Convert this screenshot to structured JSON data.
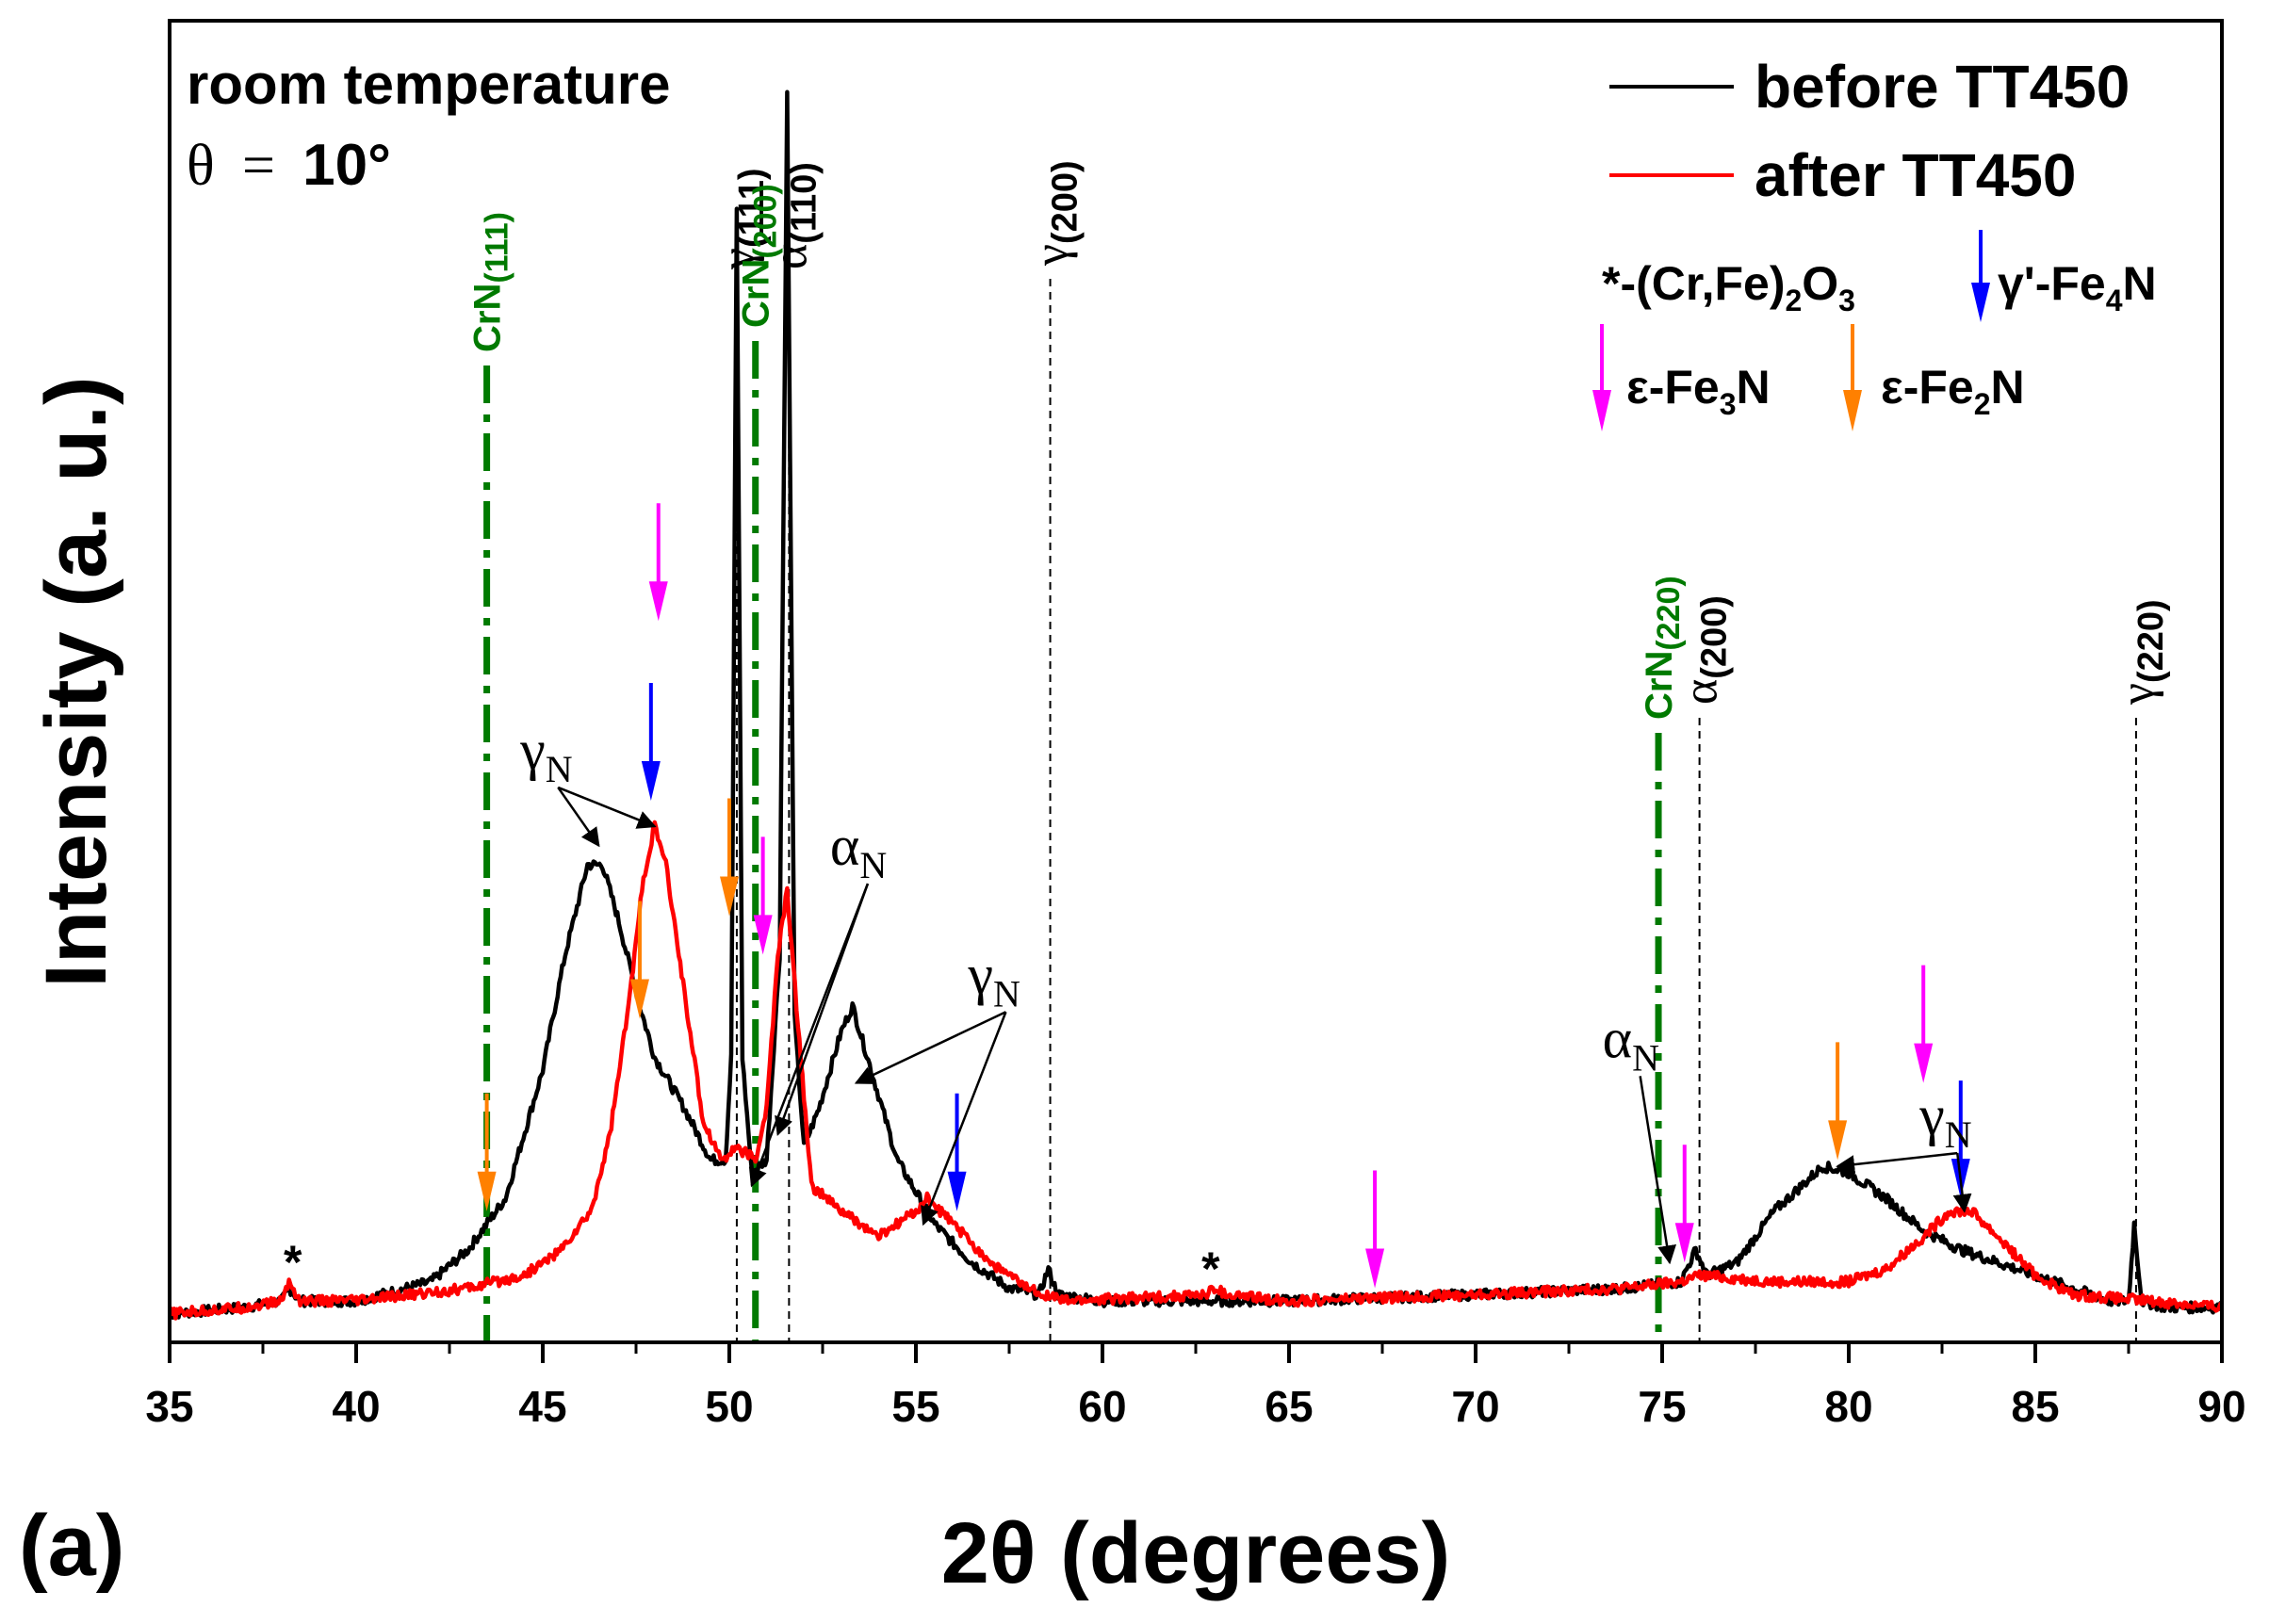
{
  "chart_data": {
    "type": "line",
    "panel_label": "(a)",
    "xlabel": "2θ (degrees)",
    "ylabel": "Intensity (a. u.)",
    "xlim": [
      35,
      90
    ],
    "ylim": [
      0,
      1
    ],
    "ticks": [
      35,
      40,
      45,
      50,
      55,
      60,
      65,
      70,
      75,
      80,
      85,
      90
    ],
    "tick_labels": [
      "35",
      "40",
      "45",
      "50",
      "55",
      "60",
      "65",
      "70",
      "75",
      "80",
      "85",
      "90"
    ],
    "conditions": {
      "line1": "room temperature",
      "theta_symbol": "θ",
      "equals": "=",
      "angle": "10°"
    },
    "legend": {
      "position": "top-right",
      "before": "before TT450",
      "after": "after TT450"
    },
    "phase_legend": {
      "oxide_symbol": "*",
      "oxide_a": "-(Cr,Fe)",
      "oxide_s1": "2",
      "oxide_b": "O",
      "oxide_s2": "3",
      "gp_a": "γ'-Fe",
      "gp_s": "4",
      "gp_b": "N",
      "e3_a": "ε-Fe",
      "e3_s": "3",
      "e3_b": "N",
      "e2_a": "ε-Fe",
      "e2_s": "2",
      "e2_b": "N"
    },
    "series": [
      {
        "name": "before TT450",
        "color": "#000000",
        "points": [
          [
            35,
            0.02
          ],
          [
            37,
            0.025
          ],
          [
            38,
            0.03
          ],
          [
            38.2,
            0.04
          ],
          [
            38.5,
            0.03
          ],
          [
            40,
            0.03
          ],
          [
            42,
            0.045
          ],
          [
            43,
            0.07
          ],
          [
            44,
            0.11
          ],
          [
            45,
            0.21
          ],
          [
            45.6,
            0.3
          ],
          [
            46.2,
            0.37
          ],
          [
            46.6,
            0.37
          ],
          [
            47,
            0.33
          ],
          [
            47.6,
            0.26
          ],
          [
            48,
            0.22
          ],
          [
            48.8,
            0.18
          ],
          [
            49.5,
            0.14
          ],
          [
            49.9,
            0.14
          ],
          [
            50.05,
            0.22
          ],
          [
            50.2,
            0.88
          ],
          [
            50.35,
            0.22
          ],
          [
            50.6,
            0.13
          ],
          [
            51,
            0.14
          ],
          [
            51.35,
            0.3
          ],
          [
            51.55,
            0.97
          ],
          [
            51.75,
            0.25
          ],
          [
            52,
            0.15
          ],
          [
            52.4,
            0.18
          ],
          [
            53,
            0.24
          ],
          [
            53.3,
            0.26
          ],
          [
            53.8,
            0.21
          ],
          [
            54.5,
            0.14
          ],
          [
            55.5,
            0.09
          ],
          [
            56.5,
            0.06
          ],
          [
            57.5,
            0.04
          ],
          [
            58.3,
            0.035
          ],
          [
            58.55,
            0.055
          ],
          [
            58.8,
            0.035
          ],
          [
            60,
            0.03
          ],
          [
            65,
            0.03
          ],
          [
            70,
            0.035
          ],
          [
            74,
            0.04
          ],
          [
            75.5,
            0.045
          ],
          [
            75.9,
            0.07
          ],
          [
            76.2,
            0.05
          ],
          [
            77,
            0.06
          ],
          [
            78,
            0.1
          ],
          [
            79.3,
            0.135
          ],
          [
            80,
            0.13
          ],
          [
            81,
            0.11
          ],
          [
            82,
            0.085
          ],
          [
            83,
            0.07
          ],
          [
            84,
            0.06
          ],
          [
            85,
            0.05
          ],
          [
            87,
            0.03
          ],
          [
            87.5,
            0.03
          ],
          [
            87.65,
            0.09
          ],
          [
            87.85,
            0.03
          ],
          [
            88.5,
            0.025
          ],
          [
            90,
            0.025
          ]
        ]
      },
      {
        "name": "after TT450",
        "color": "#ff0000",
        "points": [
          [
            35,
            0.02
          ],
          [
            37,
            0.025
          ],
          [
            38,
            0.03
          ],
          [
            38.2,
            0.045
          ],
          [
            38.5,
            0.03
          ],
          [
            40,
            0.03
          ],
          [
            43,
            0.04
          ],
          [
            44.5,
            0.05
          ],
          [
            45.5,
            0.07
          ],
          [
            46.3,
            0.1
          ],
          [
            46.8,
            0.16
          ],
          [
            47.3,
            0.26
          ],
          [
            47.7,
            0.36
          ],
          [
            48,
            0.4
          ],
          [
            48.3,
            0.37
          ],
          [
            48.8,
            0.27
          ],
          [
            49.3,
            0.17
          ],
          [
            49.8,
            0.14
          ],
          [
            50.2,
            0.15
          ],
          [
            50.7,
            0.14
          ],
          [
            51,
            0.18
          ],
          [
            51.3,
            0.3
          ],
          [
            51.55,
            0.35
          ],
          [
            51.8,
            0.26
          ],
          [
            52.2,
            0.12
          ],
          [
            53,
            0.1
          ],
          [
            54,
            0.08
          ],
          [
            55,
            0.1
          ],
          [
            55.3,
            0.11
          ],
          [
            56,
            0.09
          ],
          [
            57,
            0.06
          ],
          [
            58,
            0.04
          ],
          [
            59,
            0.03
          ],
          [
            62.8,
            0.035
          ],
          [
            63,
            0.04
          ],
          [
            63.3,
            0.035
          ],
          [
            65,
            0.03
          ],
          [
            70,
            0.035
          ],
          [
            74,
            0.04
          ],
          [
            75.5,
            0.045
          ],
          [
            76,
            0.05
          ],
          [
            78,
            0.045
          ],
          [
            80,
            0.045
          ],
          [
            81,
            0.055
          ],
          [
            82,
            0.08
          ],
          [
            82.7,
            0.1
          ],
          [
            83.3,
            0.1
          ],
          [
            84,
            0.08
          ],
          [
            85,
            0.05
          ],
          [
            86,
            0.035
          ],
          [
            88,
            0.03
          ],
          [
            90,
            0.025
          ]
        ]
      }
    ],
    "reference_lines": [
      {
        "x": 43.5,
        "style": "crn",
        "label": "CrN",
        "sub": "(111)",
        "color": "#007a00"
      },
      {
        "x": 50.2,
        "style": "dashed",
        "label": "γ",
        "sub": "(111)",
        "color": "#000000"
      },
      {
        "x": 50.7,
        "style": "crn",
        "label": "CrN",
        "sub": "(200)",
        "color": "#007a00"
      },
      {
        "x": 51.6,
        "style": "dashed",
        "label": "α",
        "sub": "(110)",
        "color": "#000000"
      },
      {
        "x": 58.6,
        "style": "dashed",
        "label": "γ",
        "sub": "(200)",
        "color": "#000000"
      },
      {
        "x": 74.9,
        "style": "crn",
        "label": "CrN",
        "sub": "(220)",
        "color": "#007a00"
      },
      {
        "x": 76,
        "style": "dashed",
        "label": "α",
        "sub": "(200)",
        "color": "#000000"
      },
      {
        "x": 87.7,
        "style": "dashed",
        "label": "γ",
        "sub": "(220)",
        "color": "#000000"
      }
    ],
    "phase_markers": [
      {
        "phase": "ε-Fe2N",
        "color": "#ff8000",
        "x": 43.5,
        "y": 0.1
      },
      {
        "phase": "ε-Fe2N",
        "color": "#ff8000",
        "x": 47.6,
        "y": 0.25
      },
      {
        "phase": "γ'-Fe4N",
        "color": "#0000ff",
        "x": 47.9,
        "y": 0.42
      },
      {
        "phase": "ε-Fe3N",
        "color": "#ff00ff",
        "x": 48.1,
        "y": 0.56
      },
      {
        "phase": "ε-Fe2N",
        "color": "#ff8000",
        "x": 50,
        "y": 0.33
      },
      {
        "phase": "ε-Fe3N",
        "color": "#ff00ff",
        "x": 50.9,
        "y": 0.3
      },
      {
        "phase": "γ'-Fe4N",
        "color": "#0000ff",
        "x": 56.1,
        "y": 0.1
      },
      {
        "phase": "ε-Fe3N",
        "color": "#ff00ff",
        "x": 67.3,
        "y": 0.04
      },
      {
        "phase": "ε-Fe3N",
        "color": "#ff00ff",
        "x": 75.6,
        "y": 0.06
      },
      {
        "phase": "ε-Fe2N",
        "color": "#ff8000",
        "x": 79.7,
        "y": 0.14
      },
      {
        "phase": "ε-Fe3N",
        "color": "#ff00ff",
        "x": 82,
        "y": 0.2
      },
      {
        "phase": "γ'-Fe4N",
        "color": "#0000ff",
        "x": 83,
        "y": 0.11
      }
    ],
    "oxide_marks": [
      {
        "symbol": "*",
        "x": 38.3,
        "y": 0.055
      },
      {
        "symbol": "*",
        "x": 62.9,
        "y": 0.05
      }
    ],
    "annotations": [
      {
        "sym": "γ",
        "sub": "N",
        "text_x": 44.4,
        "text_y": 0.445,
        "targets": [
          [
            46.5,
            0.385
          ],
          [
            48,
            0.4
          ]
        ]
      },
      {
        "sym": "α",
        "sub": "N",
        "text_x": 52.7,
        "text_y": 0.37,
        "targets": [
          [
            51.3,
            0.16
          ],
          [
            50.6,
            0.12
          ]
        ]
      },
      {
        "sym": "γ",
        "sub": "N",
        "text_x": 56.4,
        "text_y": 0.27,
        "targets": [
          [
            53.4,
            0.2
          ],
          [
            55.2,
            0.09
          ]
        ]
      },
      {
        "sym": "α",
        "sub": "N",
        "text_x": 73.4,
        "text_y": 0.22,
        "targets": [
          [
            75.2,
            0.06
          ]
        ]
      },
      {
        "sym": "γ",
        "sub": "N",
        "text_x": 81.9,
        "text_y": 0.16,
        "targets": [
          [
            79.7,
            0.135
          ],
          [
            83.1,
            0.1
          ]
        ]
      }
    ]
  }
}
